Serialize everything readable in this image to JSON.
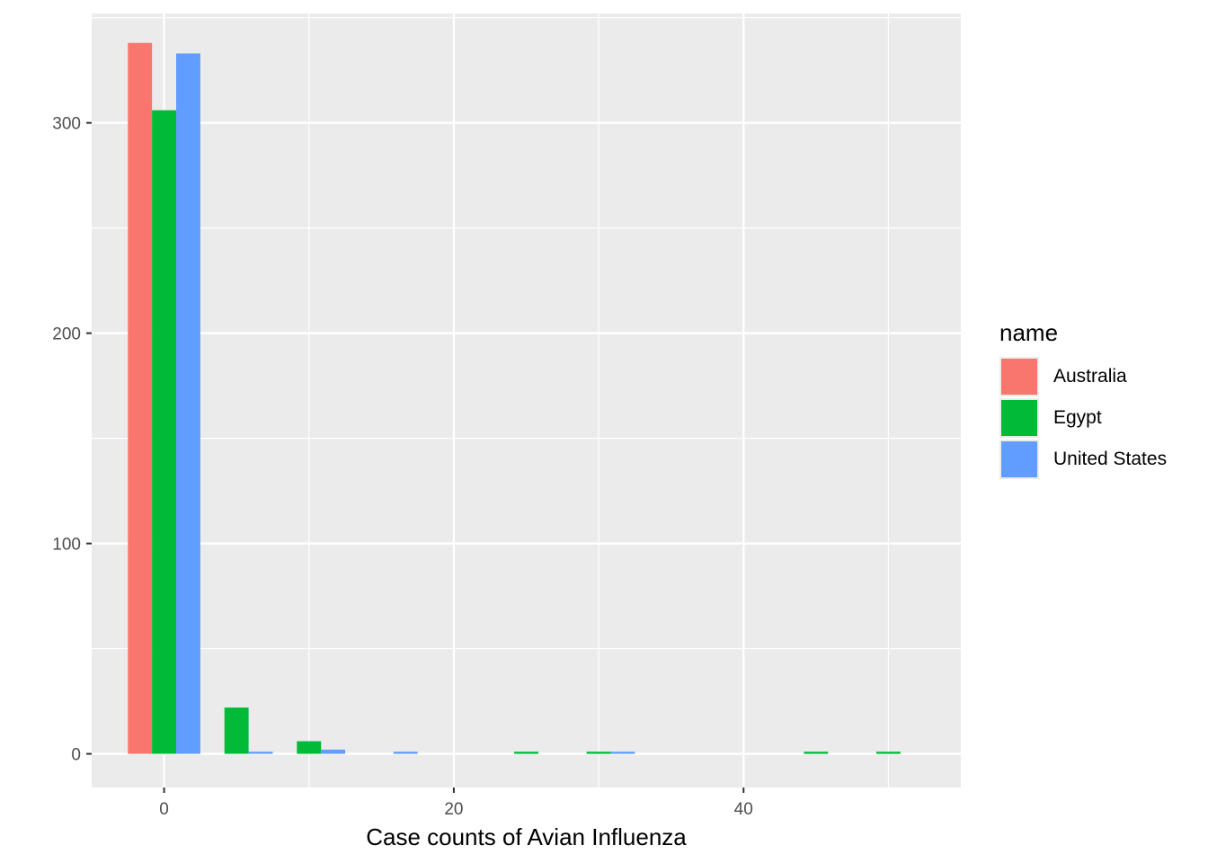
{
  "chart_data": {
    "type": "bar",
    "xlabel": "Case counts of Avian Influenza",
    "ylabel": "",
    "xlim": [
      -5,
      55
    ],
    "ylim": [
      -16,
      352
    ],
    "x_ticks": [
      0,
      20,
      40
    ],
    "y_ticks": [
      0,
      100,
      200,
      300
    ],
    "grid": true,
    "bin_width": 10,
    "legend": {
      "title": "name",
      "position": "right"
    },
    "series": [
      {
        "name": "Australia",
        "color": "#F8766D",
        "bars": [
          {
            "x": 0,
            "y": 338
          }
        ]
      },
      {
        "name": "Egypt",
        "color": "#00BA38",
        "bars": [
          {
            "x": 0,
            "y": 306
          },
          {
            "x": 5,
            "y": 22
          },
          {
            "x": 10,
            "y": 6
          },
          {
            "x": 25,
            "y": 1
          },
          {
            "x": 30,
            "y": 1
          },
          {
            "x": 45,
            "y": 1
          },
          {
            "x": 50,
            "y": 1
          }
        ]
      },
      {
        "name": "United States",
        "color": "#619CFF",
        "bars": [
          {
            "x": 0,
            "y": 333
          },
          {
            "x": 5,
            "y": 1
          },
          {
            "x": 10,
            "y": 2
          },
          {
            "x": 15,
            "y": 1
          },
          {
            "x": 30,
            "y": 1
          }
        ]
      }
    ]
  }
}
